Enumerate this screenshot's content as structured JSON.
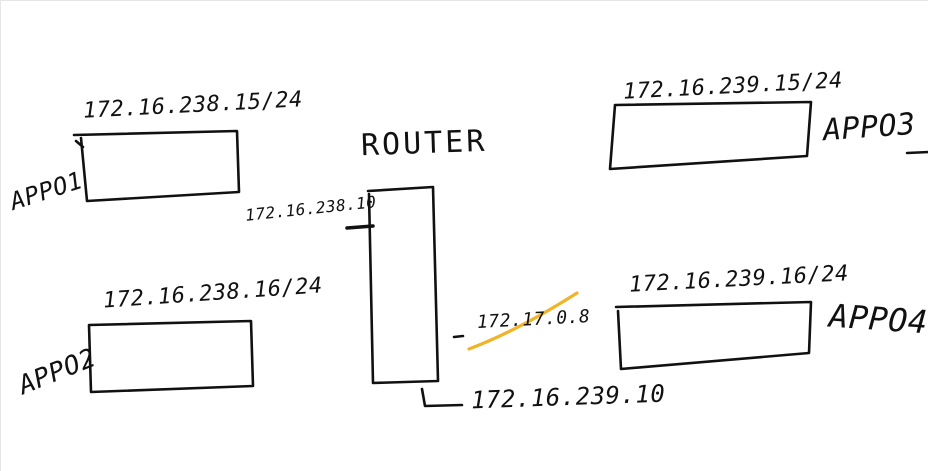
{
  "colors": {
    "ink": "#111111",
    "highlight": "#f0b429",
    "background": "#ffffff"
  },
  "router": {
    "label": "ROUTER",
    "left_ip": "172.16.238.10",
    "right_ip_old": "172.17.0.8",
    "bottom_ip": "172.16.239.10"
  },
  "apps": [
    {
      "label": "APPO1",
      "ip": "172.16.238.15/24"
    },
    {
      "label": "APPO2",
      "ip": "172.16.238.16/24"
    },
    {
      "label": "APPO3",
      "ip": "172.16.239.15/24"
    },
    {
      "label": "APPO4",
      "ip": "172.16.239.16/24"
    }
  ]
}
